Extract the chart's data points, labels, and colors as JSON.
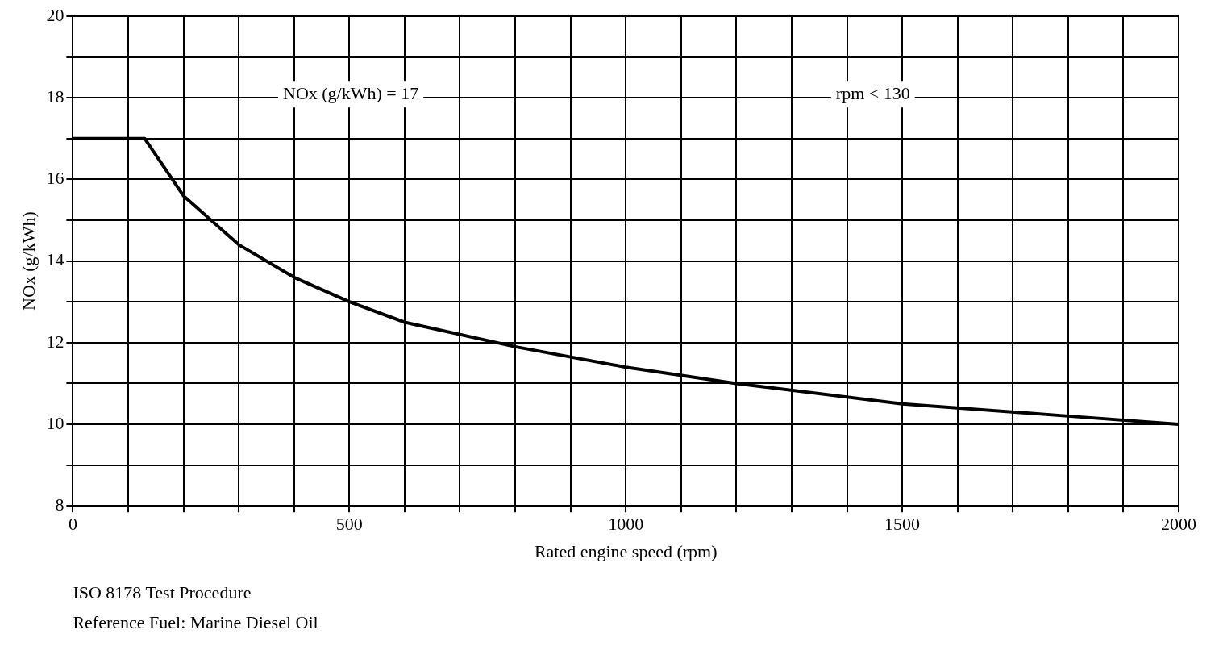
{
  "chart_data": {
    "type": "line",
    "xlabel": "Rated engine speed (rpm)",
    "ylabel": "NOx (g/kWh)",
    "annotations": [
      "NOx (g/kWh) = 17",
      "rpm < 130",
      "ISO 8178 Test Procedure",
      "Reference Fuel: Marine Diesel Oil"
    ],
    "x": [
      0,
      130,
      200,
      300,
      400,
      500,
      600,
      800,
      1000,
      1200,
      1500,
      1800,
      2000
    ],
    "series": [
      {
        "color": "#000000",
        "values": [
          17,
          17,
          15.6,
          14.4,
          13.6,
          13.0,
          12.5,
          11.9,
          11.4,
          11.0,
          10.5,
          10.2,
          10.0
        ]
      }
    ],
    "xlim": [
      0,
      2000
    ],
    "ylim": [
      8,
      20
    ],
    "xticks": [
      0,
      {
        "value": 100,
        "label": null
      },
      {
        "value": 200,
        "label": null
      },
      {
        "value": 300,
        "label": null
      },
      {
        "value": 400,
        "label": null
      },
      500,
      {
        "value": 600,
        "label": null
      },
      {
        "value": 700,
        "label": null
      },
      {
        "value": 800,
        "label": null
      },
      {
        "value": 900,
        "label": null
      },
      1000,
      {
        "value": 1100,
        "label": null
      },
      {
        "value": 1200,
        "label": null
      },
      {
        "value": 1300,
        "label": null
      },
      {
        "value": 1400,
        "label": null
      },
      1500,
      {
        "value": 1600,
        "label": null
      },
      {
        "value": 1700,
        "label": null
      },
      {
        "value": 1800,
        "label": null
      },
      {
        "value": 1900,
        "label": null
      },
      2000
    ],
    "yticks": [
      8,
      {
        "value": 9,
        "label": null
      },
      10,
      {
        "value": 11,
        "label": null
      },
      12,
      {
        "value": 13,
        "label": null
      },
      14,
      {
        "value": 15,
        "label": null
      },
      16,
      {
        "value": 17,
        "label": null
      },
      18,
      {
        "value": 19,
        "label": null
      },
      20
    ],
    "grid": true,
    "legend": false,
    "marker": "none",
    "line_style": "solid"
  }
}
